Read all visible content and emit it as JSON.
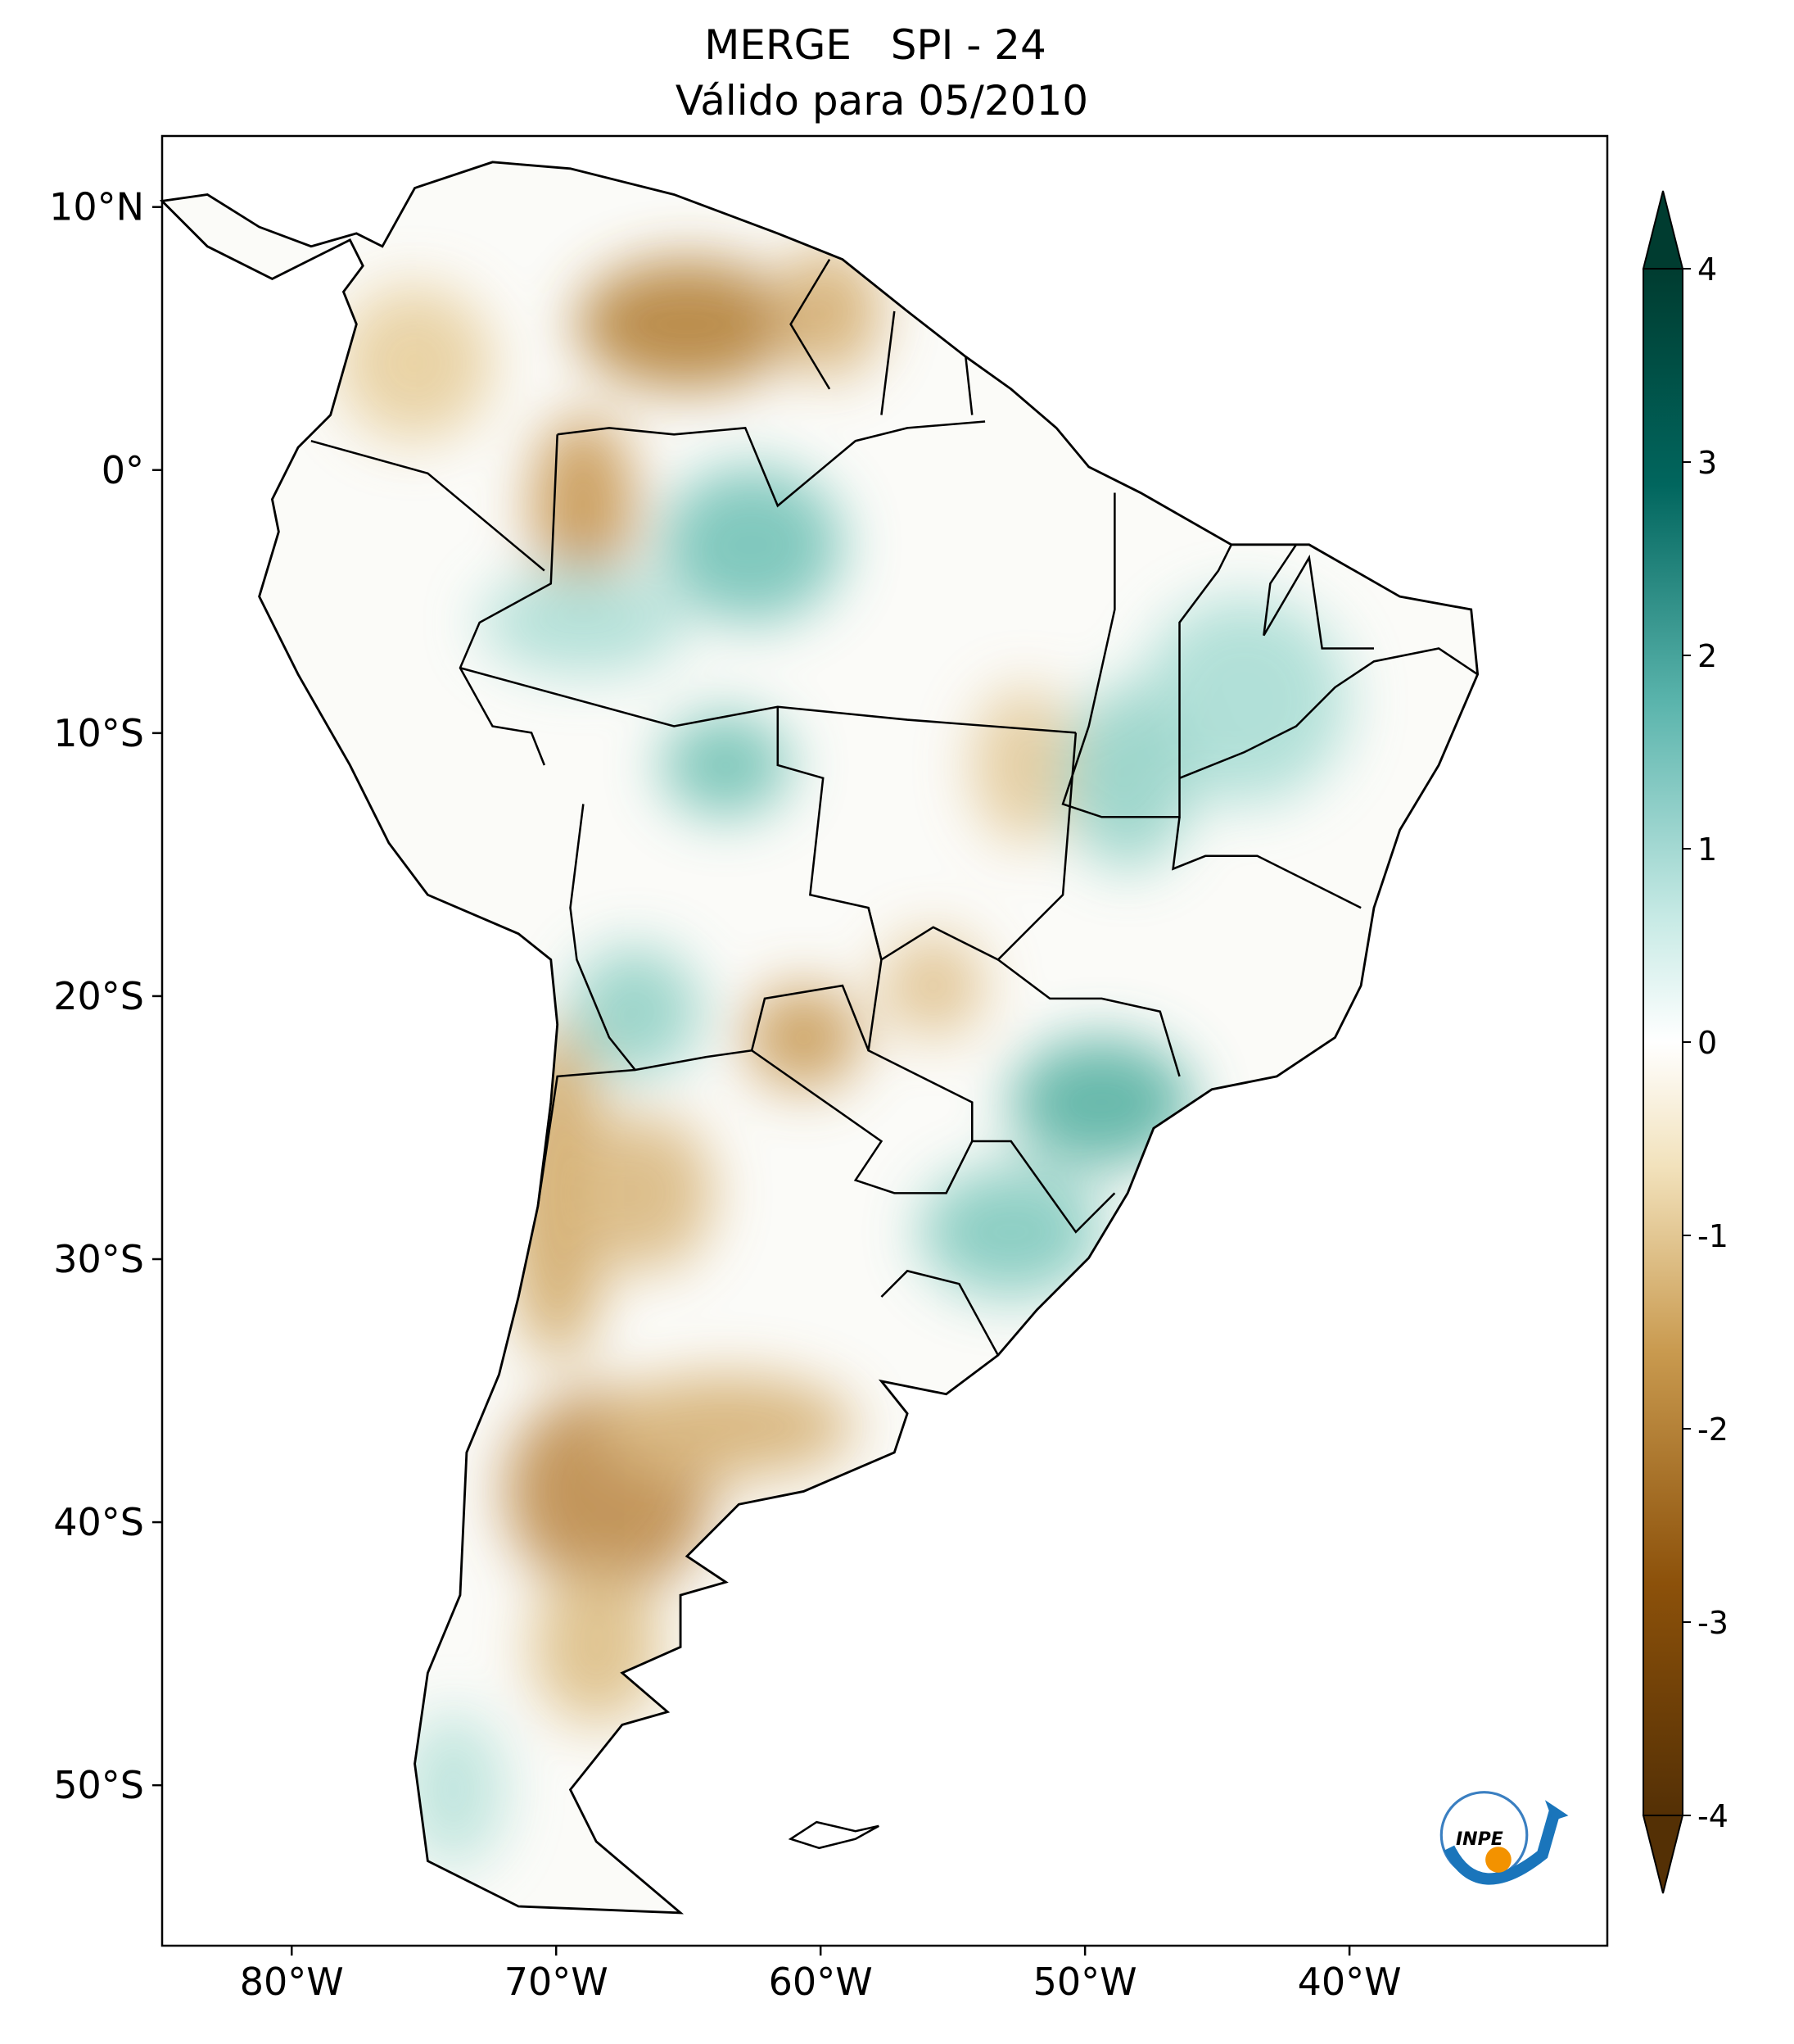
{
  "chart_data": {
    "type": "map",
    "title": "MERGE   SPI - 24",
    "subtitle": "Válido para 05/2010",
    "xlim": [
      -84.9,
      -30.25
    ],
    "ylim": [
      -56.1,
      12.7
    ],
    "xticks": [
      {
        "value": -80,
        "label": "80°W"
      },
      {
        "value": -70,
        "label": "70°W"
      },
      {
        "value": -60,
        "label": "60°W"
      },
      {
        "value": -50,
        "label": "50°W"
      },
      {
        "value": -40,
        "label": "40°W"
      }
    ],
    "yticks": [
      {
        "value": 10,
        "label": "10°N"
      },
      {
        "value": 0,
        "label": "0°"
      },
      {
        "value": -10,
        "label": "10°S"
      },
      {
        "value": -20,
        "label": "20°S"
      },
      {
        "value": -30,
        "label": "30°S"
      },
      {
        "value": -40,
        "label": "40°S"
      },
      {
        "value": -50,
        "label": "50°S"
      }
    ],
    "colorbar": {
      "lim": [
        -4,
        4
      ],
      "ticks": [
        -4,
        -3,
        -2,
        -1,
        0,
        1,
        2,
        3,
        4
      ]
    },
    "logo_text": "INPE"
  }
}
